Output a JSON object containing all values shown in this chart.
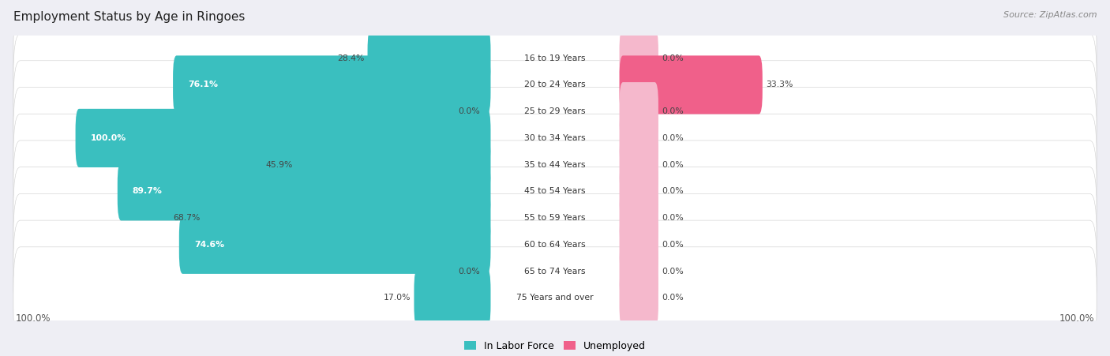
{
  "title": "Employment Status by Age in Ringoes",
  "source": "Source: ZipAtlas.com",
  "categories": [
    "16 to 19 Years",
    "20 to 24 Years",
    "25 to 29 Years",
    "30 to 34 Years",
    "35 to 44 Years",
    "45 to 54 Years",
    "55 to 59 Years",
    "60 to 64 Years",
    "65 to 74 Years",
    "75 Years and over"
  ],
  "labor_force": [
    28.4,
    76.1,
    0.0,
    100.0,
    45.9,
    89.7,
    68.7,
    74.6,
    0.0,
    17.0
  ],
  "unemployed": [
    0.0,
    33.3,
    0.0,
    0.0,
    0.0,
    0.0,
    0.0,
    0.0,
    0.0,
    0.0
  ],
  "labor_force_color": "#3abfbf",
  "labor_force_light_color": "#90d4d4",
  "unemployed_color": "#f0608a",
  "unemployed_light_color": "#f5b8cc",
  "background_color": "#eeeef4",
  "label_axis_left": "100.0%",
  "label_axis_right": "100.0%",
  "legend_labor": "In Labor Force",
  "legend_unemployed": "Unemployed"
}
